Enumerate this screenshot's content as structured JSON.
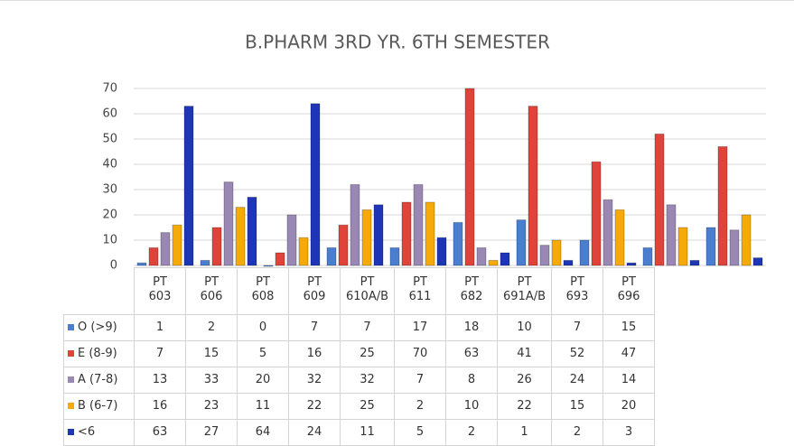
{
  "chart_data": {
    "type": "bar",
    "title": "B.PHARM 3RD YR. 6TH SEMESTER",
    "categories": [
      "PT 603",
      "PT 606",
      "PT 608",
      "PT 609",
      "PT 610A/B",
      "PT 611",
      "PT 682",
      "PT 691A/B",
      "PT 693",
      "PT 696"
    ],
    "series": [
      {
        "name": "O (>9)",
        "color": "#4a7fd0",
        "values": [
          1,
          2,
          0,
          7,
          7,
          17,
          18,
          10,
          7,
          15
        ]
      },
      {
        "name": "E (8-9)",
        "color": "#e0433a",
        "values": [
          7,
          15,
          5,
          16,
          25,
          70,
          63,
          41,
          52,
          47
        ]
      },
      {
        "name": "A (7-8)",
        "color": "#9a88b4",
        "values": [
          13,
          33,
          20,
          32,
          32,
          7,
          8,
          26,
          24,
          14
        ]
      },
      {
        "name": "B (6-7)",
        "color": "#f5aa0a",
        "values": [
          16,
          23,
          11,
          22,
          25,
          2,
          10,
          22,
          15,
          20
        ]
      },
      {
        "name": "<6",
        "color": "#1f35b8",
        "values": [
          63,
          27,
          64,
          24,
          11,
          5,
          2,
          1,
          2,
          3
        ]
      }
    ],
    "ylim": [
      0,
      70
    ],
    "yticks": [
      0,
      10,
      20,
      30,
      40,
      50,
      60,
      70
    ],
    "grid": true
  }
}
